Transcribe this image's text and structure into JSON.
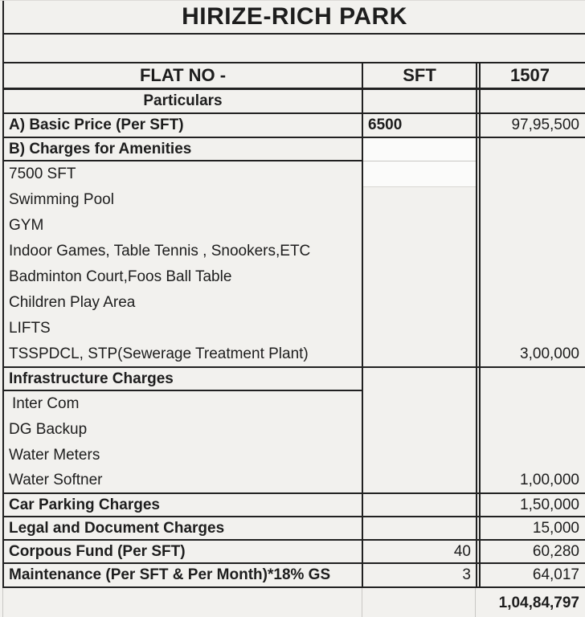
{
  "title": "HIRIZE-RICH PARK",
  "header": {
    "flat_no_label": "FLAT NO -",
    "sft_label": "SFT",
    "flat_number": "1507"
  },
  "subheader": "Particulars",
  "rows": [
    {
      "label": "A) Basic Price (Per SFT)",
      "sft": "6500",
      "value": "97,95,500"
    },
    {
      "label": "B) Charges for Amenities",
      "sft": "",
      "value": ""
    },
    {
      "label": "7500 SFT",
      "sft": "",
      "value": ""
    },
    {
      "label": "Swimming Pool",
      "sft": "",
      "value": ""
    },
    {
      "label": "GYM",
      "sft": "",
      "value": ""
    },
    {
      "label": "Indoor Games, Table Tennis , Snookers,ETC",
      "sft": "",
      "value": ""
    },
    {
      "label": "Badminton Court,Foos Ball Table",
      "sft": "",
      "value": ""
    },
    {
      "label": "Children Play Area",
      "sft": "",
      "value": ""
    },
    {
      "label": "LIFTS",
      "sft": "",
      "value": ""
    },
    {
      "label": "TSSPDCL, STP(Sewerage Treatment Plant)",
      "sft": "",
      "value": "3,00,000"
    },
    {
      "label": "Infrastructure Charges",
      "sft": "",
      "value": ""
    },
    {
      "label": "Inter Com",
      "sft": "",
      "value": ""
    },
    {
      "label": "DG Backup",
      "sft": "",
      "value": ""
    },
    {
      "label": "Water Meters",
      "sft": "",
      "value": ""
    },
    {
      "label": "Water Softner",
      "sft": "",
      "value": "1,00,000"
    },
    {
      "label": "Car Parking Charges",
      "sft": "",
      "value": "1,50,000"
    },
    {
      "label": "Legal and Document Charges",
      "sft": "",
      "value": "15,000"
    },
    {
      "label": "Corpous Fund (Per SFT)",
      "sft": "40",
      "value": "60,280"
    },
    {
      "label": "Maintenance (Per SFT & Per Month)*18% GS",
      "sft": "3",
      "value": "64,017"
    }
  ],
  "total_value": "1,04,84,797",
  "colors": {
    "border_dark": "#212121",
    "border_light": "#c9c7c4",
    "background": "#f2f1ee",
    "text": "#1d1d1d"
  }
}
